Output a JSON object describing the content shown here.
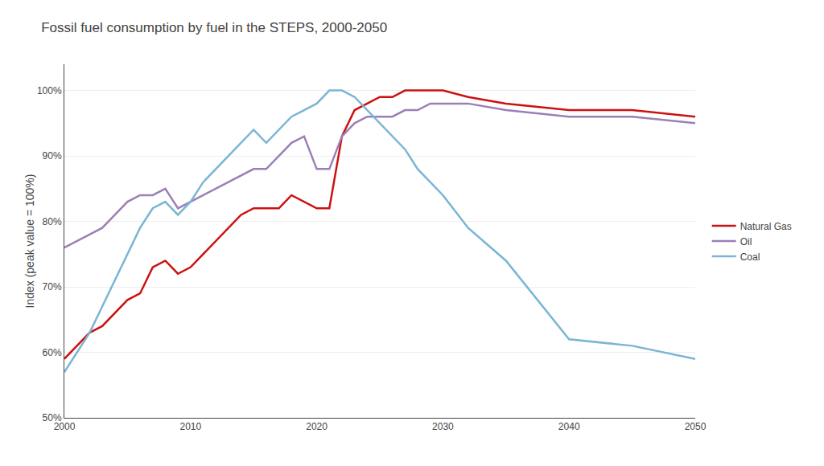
{
  "chart_data": {
    "type": "line",
    "title": "Fossil fuel consumption by fuel in the STEPS, 2000-2050",
    "y_label": "Index (peak value = 100%)",
    "x": [
      2000,
      2001,
      2002,
      2003,
      2004,
      2005,
      2006,
      2007,
      2008,
      2009,
      2010,
      2011,
      2012,
      2013,
      2014,
      2015,
      2016,
      2017,
      2018,
      2019,
      2020,
      2021,
      2022,
      2023,
      2024,
      2025,
      2026,
      2027,
      2028,
      2029,
      2030,
      2032,
      2035,
      2040,
      2045,
      2050
    ],
    "series": [
      {
        "name": "Natural Gas",
        "color": "#cc1111",
        "values": [
          59,
          61,
          63,
          64,
          66,
          68,
          69,
          73,
          74,
          72,
          73,
          75,
          77,
          79,
          81,
          82,
          82,
          82,
          84,
          83,
          82,
          82,
          93,
          97,
          98,
          99,
          99,
          100,
          100,
          100,
          100,
          99,
          98,
          97,
          97,
          96
        ]
      },
      {
        "name": "Oil",
        "color": "#9b7fb6",
        "values": [
          76,
          77,
          78,
          79,
          81,
          83,
          84,
          84,
          85,
          82,
          83,
          84,
          85,
          86,
          87,
          88,
          88,
          90,
          92,
          93,
          88,
          88,
          93,
          95,
          96,
          96,
          96,
          97,
          97,
          98,
          98,
          98,
          97,
          96,
          96,
          95
        ]
      },
      {
        "name": "Coal",
        "color": "#7ab5d4",
        "values": [
          57,
          60,
          63,
          67,
          71,
          75,
          79,
          82,
          83,
          81,
          83,
          86,
          88,
          90,
          92,
          94,
          92,
          94,
          96,
          97,
          98,
          100,
          100,
          99,
          97,
          95,
          93,
          91,
          88,
          86,
          84,
          79,
          74,
          62,
          61,
          59
        ]
      }
    ],
    "xlim": [
      2000,
      2050
    ],
    "xticks": [
      2000,
      2010,
      2020,
      2030,
      2040,
      2050
    ],
    "ylim": [
      50,
      104
    ],
    "yticks": [
      {
        "value": 50,
        "label": "50%"
      },
      {
        "value": 60,
        "label": "60%"
      },
      {
        "value": 70,
        "label": "70%"
      },
      {
        "value": 80,
        "label": "80%"
      },
      {
        "value": 90,
        "label": "90%"
      },
      {
        "value": 100,
        "label": "100%"
      }
    ],
    "grid": "y",
    "legend": "right"
  }
}
